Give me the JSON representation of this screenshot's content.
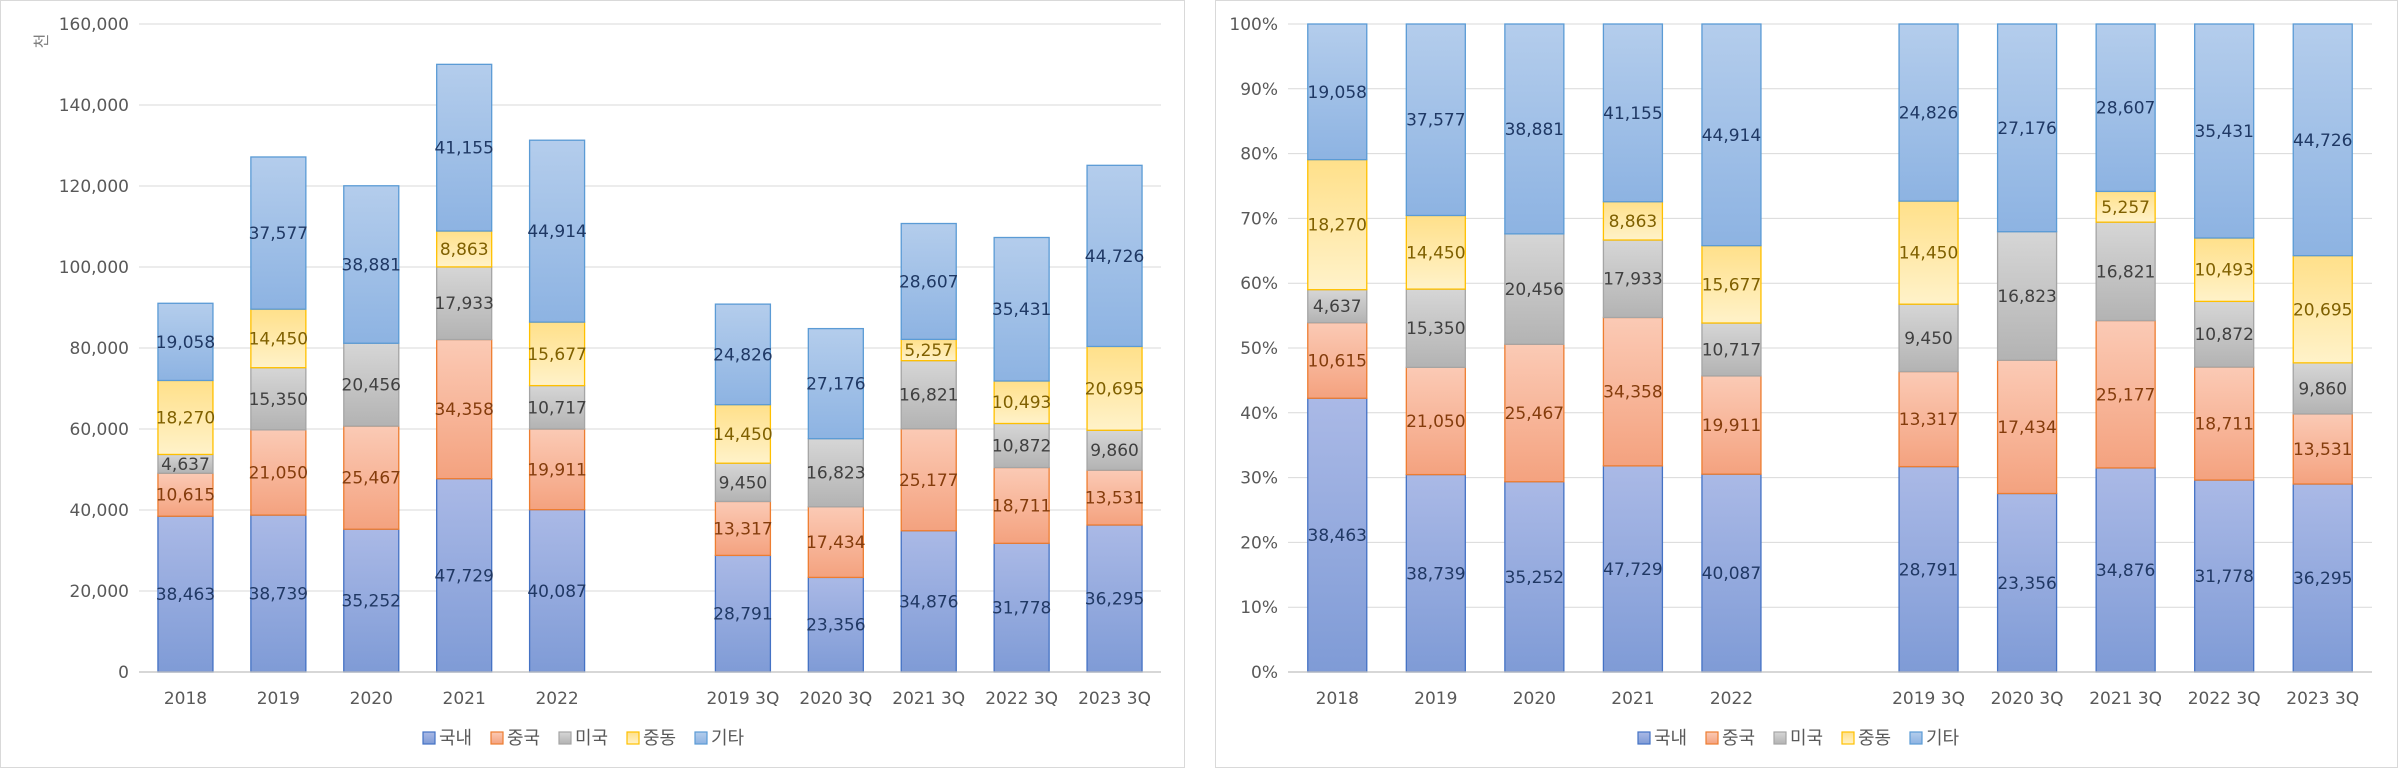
{
  "chart_data": [
    {
      "type": "bar",
      "stacked": true,
      "unit_label": "천",
      "categories": [
        "2018",
        "2019",
        "2020",
        "2021",
        "2022",
        "",
        "2019 3Q",
        "2020 3Q",
        "2021 3Q",
        "2022 3Q",
        "2023 3Q"
      ],
      "ylim": [
        0,
        160000
      ],
      "yticks": [
        0,
        20000,
        40000,
        60000,
        80000,
        100000,
        120000,
        140000,
        160000
      ],
      "ytick_labels": [
        "0",
        "20,000",
        "40,000",
        "60,000",
        "80,000",
        "100,000",
        "120,000",
        "140,000",
        "160,000"
      ],
      "grid": true,
      "legend": "bottom",
      "series": [
        {
          "name": "국내",
          "values": [
            38463,
            38739,
            35252,
            47729,
            40087,
            null,
            28791,
            23356,
            34876,
            31778,
            36295
          ],
          "labels": [
            "38,463",
            "38,739",
            "35,252",
            "47,729",
            "40,087",
            "",
            "28,791",
            "23,356",
            "34,876",
            "31,778",
            "36,295"
          ]
        },
        {
          "name": "중국",
          "values": [
            10615,
            21050,
            25467,
            34358,
            19911,
            null,
            13317,
            17434,
            25177,
            18711,
            13531
          ],
          "labels": [
            "10,615",
            "21,050",
            "25,467",
            "34,358",
            "19,911",
            "",
            "13,317",
            "17,434",
            "25,177",
            "18,711",
            "13,531"
          ]
        },
        {
          "name": "미국",
          "values": [
            4637,
            15350,
            20456,
            17933,
            10717,
            null,
            9450,
            16823,
            16821,
            10872,
            9860
          ],
          "labels": [
            "4,637",
            "15,350",
            "20,456",
            "17,933",
            "10,717",
            "",
            "9,450",
            "16,823",
            "16,821",
            "10,872",
            "9,860"
          ]
        },
        {
          "name": "중동",
          "values": [
            18270,
            14450,
            0,
            8863,
            15677,
            null,
            14450,
            0,
            5257,
            10493,
            20695
          ],
          "labels": [
            "18,270",
            "14,450",
            "",
            "8,863",
            "15,677",
            "",
            "14,450",
            "",
            "5,257",
            "10,493",
            "20,695"
          ]
        },
        {
          "name": "기타",
          "values": [
            19058,
            37577,
            38881,
            41155,
            44914,
            null,
            24826,
            27176,
            28607,
            35431,
            44726
          ],
          "labels": [
            "19,058",
            "37,577",
            "38,881",
            "41,155",
            "44,914",
            "",
            "24,826",
            "27,176",
            "28,607",
            "35,431",
            "44,726"
          ]
        }
      ]
    },
    {
      "type": "bar",
      "stacked": true,
      "normalized": true,
      "categories": [
        "2018",
        "2019",
        "2020",
        "2021",
        "2022",
        "",
        "2019 3Q",
        "2020 3Q",
        "2021 3Q",
        "2022 3Q",
        "2023 3Q"
      ],
      "ylim": [
        0,
        1
      ],
      "yticks": [
        0,
        0.1,
        0.2,
        0.3,
        0.4,
        0.5,
        0.6,
        0.7,
        0.8,
        0.9,
        1.0
      ],
      "ytick_labels": [
        "0%",
        "10%",
        "20%",
        "30%",
        "40%",
        "50%",
        "60%",
        "70%",
        "80%",
        "90%",
        "100%"
      ],
      "grid": true,
      "legend": "bottom",
      "series": [
        {
          "name": "국내",
          "values": [
            38463,
            38739,
            35252,
            47729,
            40087,
            null,
            28791,
            23356,
            34876,
            31778,
            36295
          ],
          "labels": [
            "38,463",
            "38,739",
            "35,252",
            "47,729",
            "40,087",
            "",
            "28,791",
            "23,356",
            "34,876",
            "31,778",
            "36,295"
          ]
        },
        {
          "name": "중국",
          "values": [
            10615,
            21050,
            25467,
            34358,
            19911,
            null,
            13317,
            17434,
            25177,
            18711,
            13531
          ],
          "labels": [
            "10,615",
            "21,050",
            "25,467",
            "34,358",
            "19,911",
            "",
            "13,317",
            "17,434",
            "25,177",
            "18,711",
            "13,531"
          ]
        },
        {
          "name": "미국",
          "values": [
            4637,
            15350,
            20456,
            17933,
            10717,
            null,
            9450,
            16823,
            16821,
            10872,
            9860
          ],
          "labels": [
            "4,637",
            "15,350",
            "20,456",
            "17,933",
            "10,717",
            "",
            "9,450",
            "16,823",
            "16,821",
            "10,872",
            "9,860"
          ]
        },
        {
          "name": "중동",
          "values": [
            18270,
            14450,
            0,
            8863,
            15677,
            null,
            14450,
            0,
            5257,
            10493,
            20695
          ],
          "labels": [
            "18,270",
            "14,450",
            "",
            "8,863",
            "15,677",
            "",
            "14,450",
            "",
            "5,257",
            "10,493",
            "20,695"
          ]
        },
        {
          "name": "기타",
          "values": [
            19058,
            37577,
            38881,
            41155,
            44914,
            null,
            24826,
            27176,
            28607,
            35431,
            44726
          ],
          "labels": [
            "19,058",
            "37,577",
            "38,881",
            "41,155",
            "44,914",
            "",
            "24,826",
            "27,176",
            "28,607",
            "35,431",
            "44,726"
          ]
        }
      ]
    }
  ],
  "series_style": [
    {
      "name": "국내",
      "fill_top": "#aab9e6",
      "fill_bottom": "#7f9bd6",
      "stroke": "#4472c4",
      "label_color": "#203864"
    },
    {
      "name": "중국",
      "fill_top": "#fbcab5",
      "fill_bottom": "#f4a27f",
      "stroke": "#ed7d31",
      "label_color": "#843c0c"
    },
    {
      "name": "미국",
      "fill_top": "#d6d6d6",
      "fill_bottom": "#b3b3b3",
      "stroke": "#a5a5a5",
      "label_color": "#404040"
    },
    {
      "name": "중동",
      "fill_top": "#ffe08a",
      "fill_bottom": "#fff2c9",
      "stroke": "#ffc000",
      "label_color": "#7f6000"
    },
    {
      "name": "기타",
      "fill_top": "#b4cdec",
      "fill_bottom": "#8db3e2",
      "stroke": "#5b9bd5",
      "label_color": "#1f3864"
    }
  ],
  "legend_items": [
    "국내",
    "중국",
    "미국",
    "중동",
    "기타"
  ]
}
